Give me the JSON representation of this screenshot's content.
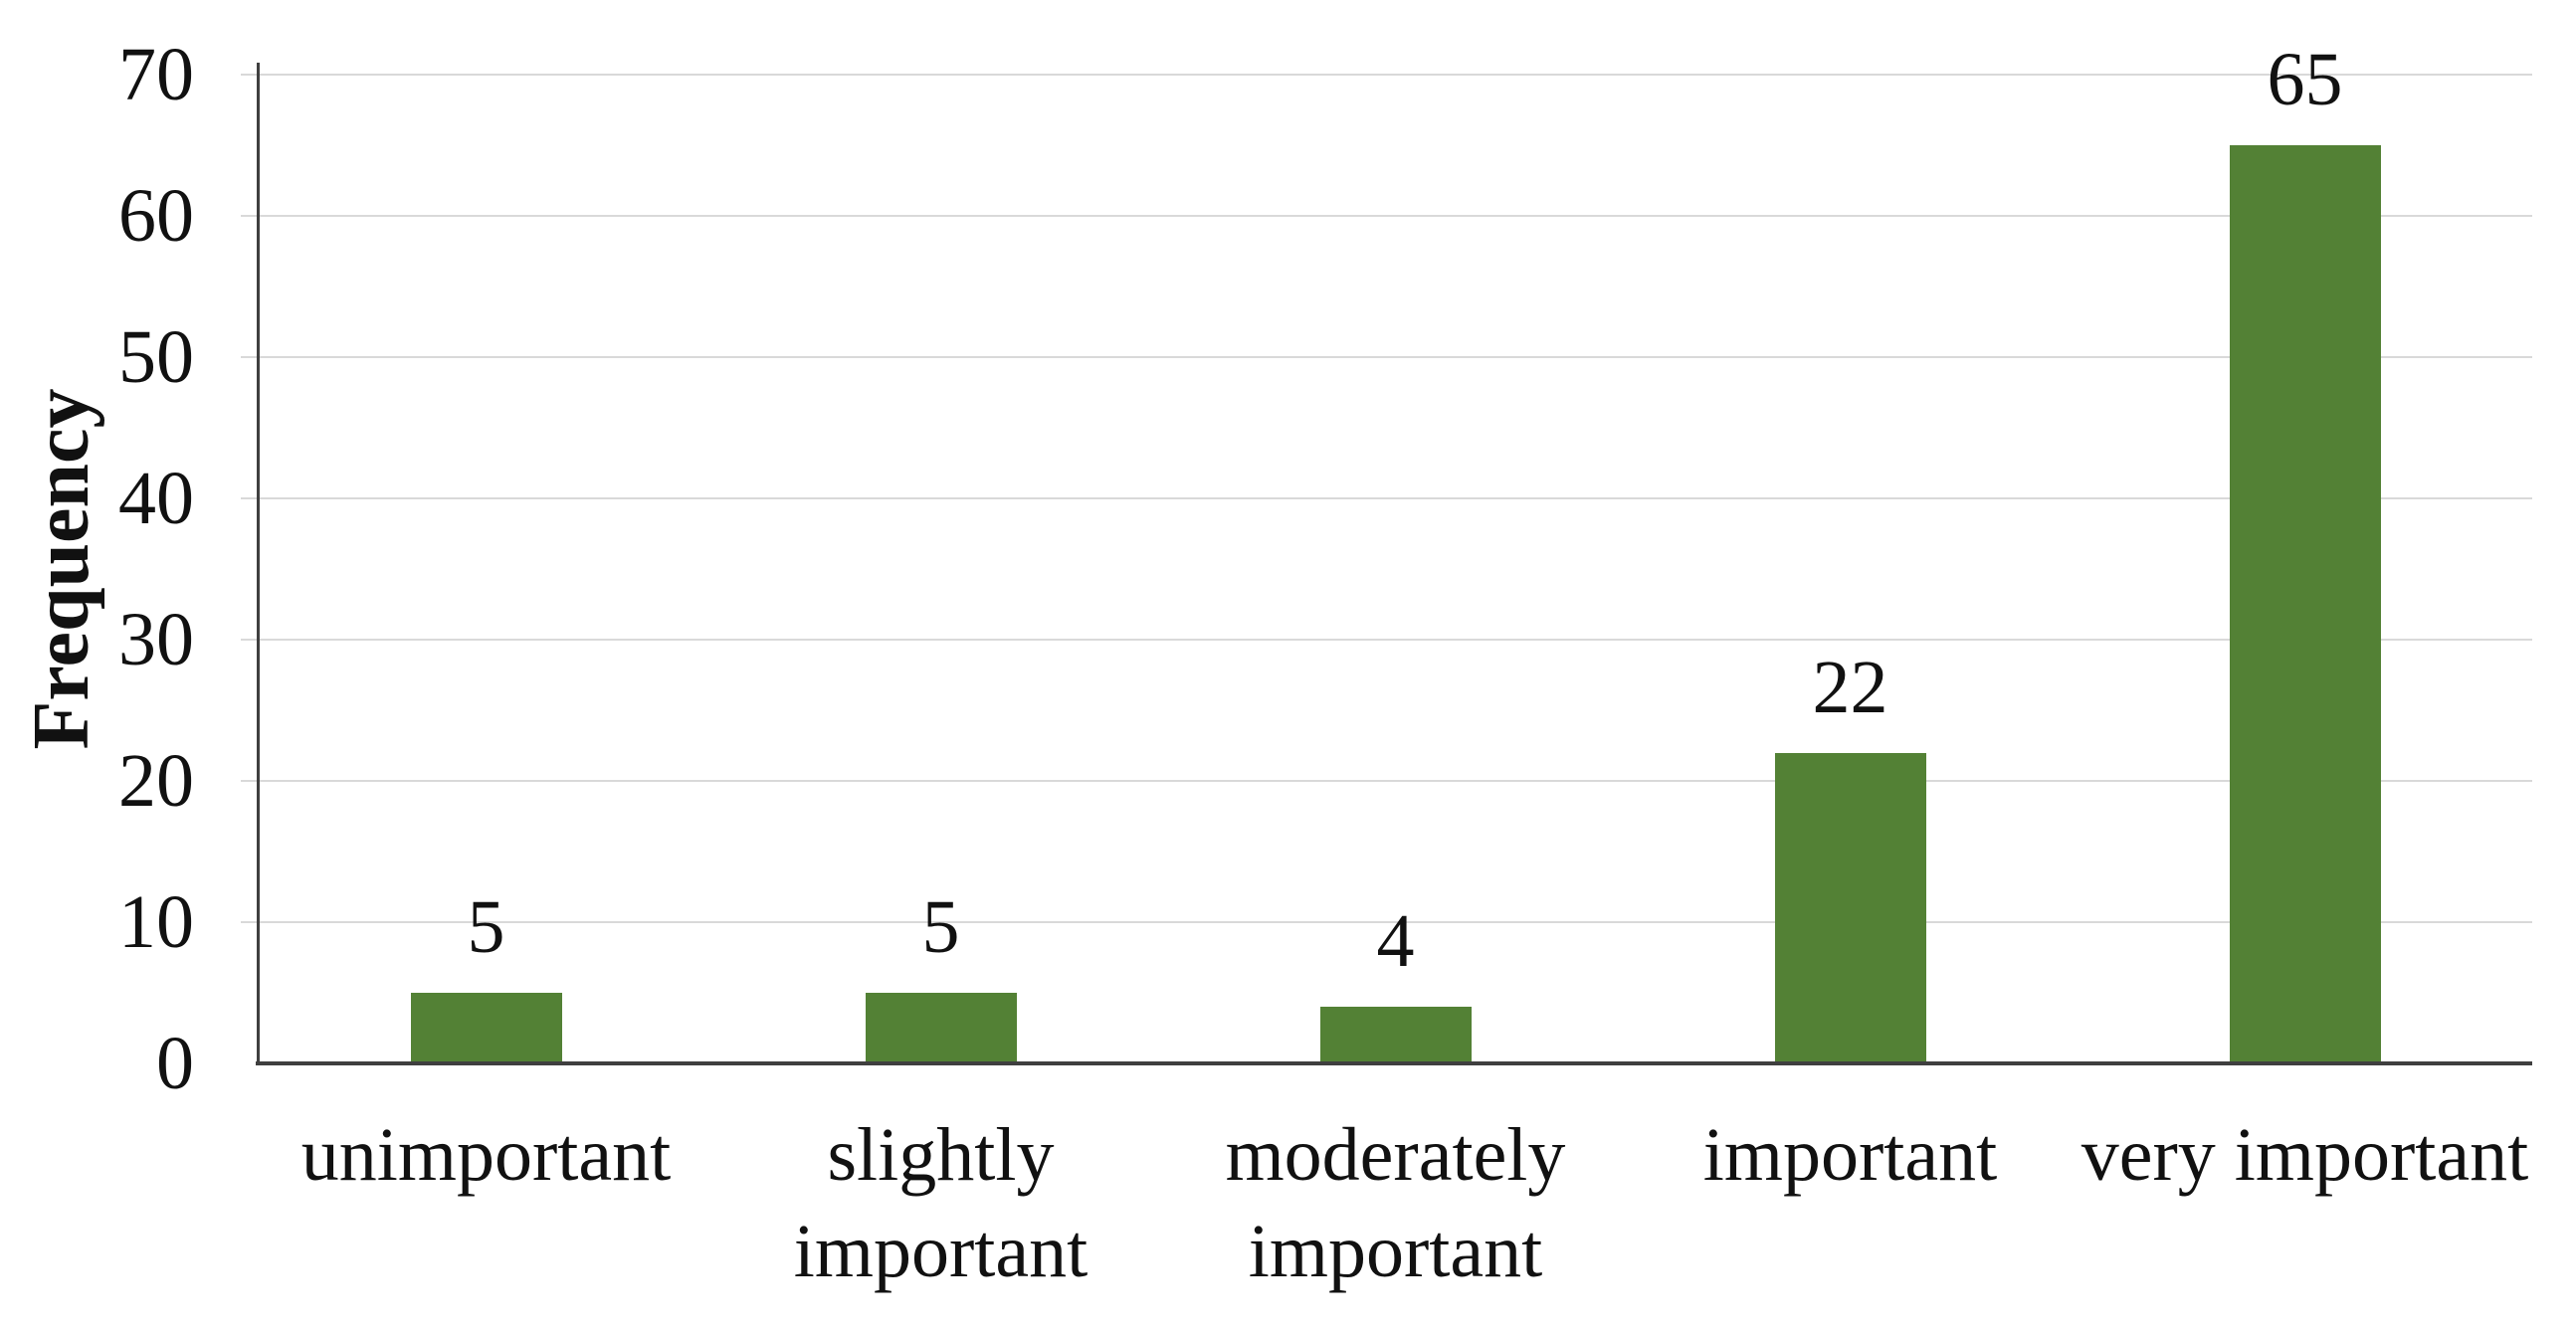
{
  "chart_data": {
    "type": "bar",
    "title": "",
    "ylabel": "Frequency",
    "xlabel": "",
    "categories": [
      "unimportant",
      "slightly important",
      "moderately important",
      "important",
      "very important"
    ],
    "values": [
      5,
      5,
      4,
      22,
      65
    ],
    "data_labels": [
      "5",
      "5",
      "4",
      "22",
      "65"
    ],
    "yticks": [
      0,
      10,
      20,
      30,
      40,
      50,
      60,
      70
    ],
    "ylim": [
      0,
      70
    ],
    "grid": true,
    "legend": false,
    "gridlines_horizontal": true,
    "colors": {
      "bar": "#538135",
      "gridline": "#d9d9d9",
      "axis": "#3f3f3f",
      "text": "#111111"
    }
  }
}
